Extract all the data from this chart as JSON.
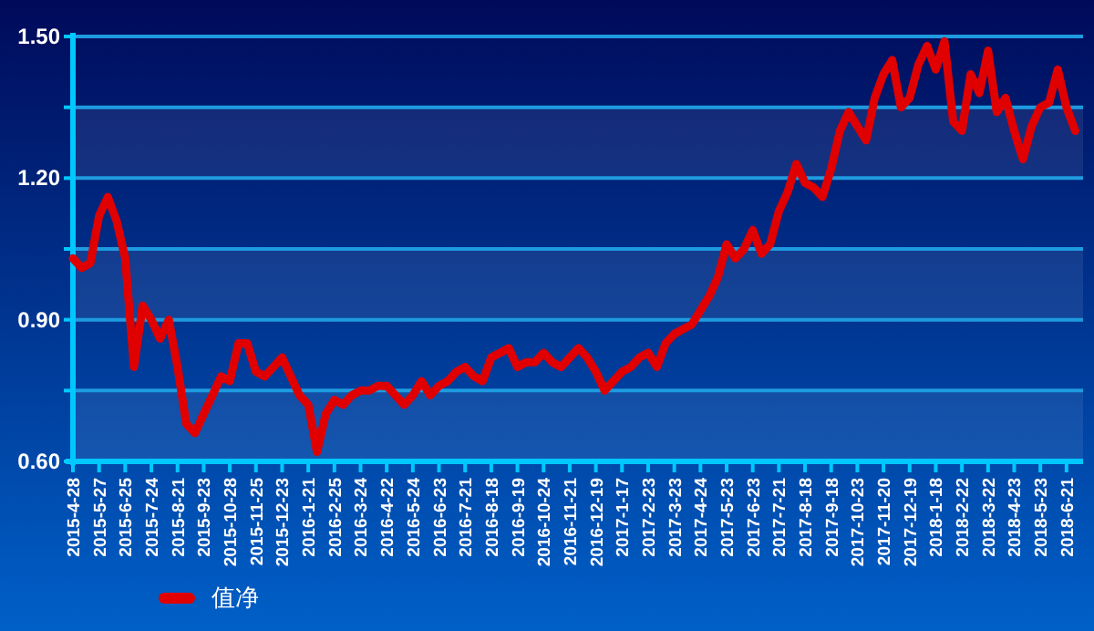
{
  "chart_data": {
    "type": "line",
    "categories": [
      "2015-4-28",
      null,
      null,
      "2015-5-27",
      null,
      null,
      "2015-6-25",
      null,
      null,
      "2015-7-24",
      null,
      null,
      "2015-8-21",
      null,
      null,
      "2015-9-23",
      null,
      null,
      "2015-10-28",
      null,
      null,
      "2015-11-25",
      null,
      null,
      "2015-12-23",
      null,
      null,
      "2016-1-21",
      null,
      null,
      "2016-2-25",
      null,
      null,
      "2016-3-24",
      null,
      null,
      "2016-4-22",
      null,
      null,
      "2016-5-24",
      null,
      null,
      "2016-6-23",
      null,
      null,
      "2016-7-21",
      null,
      null,
      "2016-8-18",
      null,
      null,
      "2016-9-19",
      null,
      null,
      "2016-10-24",
      null,
      null,
      "2016-11-21",
      null,
      null,
      "2016-12-19",
      null,
      null,
      "2017-1-17",
      null,
      null,
      "2017-2-23",
      null,
      null,
      "2017-3-23",
      null,
      null,
      "2017-4-24",
      null,
      null,
      "2017-5-23",
      null,
      null,
      "2017-6-23",
      null,
      null,
      "2017-7-21",
      null,
      null,
      "2017-8-18",
      null,
      null,
      "2017-9-18",
      null,
      null,
      "2017-10-23",
      null,
      null,
      "2017-11-20",
      null,
      null,
      "2017-12-19",
      null,
      null,
      "2018-1-18",
      null,
      null,
      "2018-2-22",
      null,
      null,
      "2018-3-22",
      null,
      null,
      "2018-4-23",
      null,
      null,
      "2018-5-23",
      null,
      null,
      "2018-6-21",
      null
    ],
    "series": [
      {
        "name": "值净",
        "color": "#e00000",
        "values": [
          1.03,
          1.01,
          1.02,
          1.12,
          1.16,
          1.11,
          1.03,
          0.8,
          0.93,
          0.9,
          0.86,
          0.9,
          0.8,
          0.68,
          0.66,
          0.7,
          0.74,
          0.78,
          0.77,
          0.85,
          0.85,
          0.79,
          0.78,
          0.8,
          0.82,
          0.78,
          0.74,
          0.72,
          0.62,
          0.7,
          0.73,
          0.72,
          0.74,
          0.75,
          0.75,
          0.76,
          0.76,
          0.74,
          0.72,
          0.74,
          0.77,
          0.74,
          0.76,
          0.77,
          0.79,
          0.8,
          0.78,
          0.77,
          0.82,
          0.83,
          0.84,
          0.8,
          0.81,
          0.81,
          0.83,
          0.81,
          0.8,
          0.82,
          0.84,
          0.82,
          0.79,
          0.75,
          0.77,
          0.79,
          0.8,
          0.82,
          0.83,
          0.8,
          0.85,
          0.87,
          0.88,
          0.89,
          0.92,
          0.95,
          0.99,
          1.06,
          1.03,
          1.05,
          1.09,
          1.04,
          1.06,
          1.13,
          1.17,
          1.23,
          1.19,
          1.18,
          1.16,
          1.22,
          1.3,
          1.34,
          1.31,
          1.28,
          1.37,
          1.42,
          1.45,
          1.35,
          1.37,
          1.44,
          1.48,
          1.43,
          1.49,
          1.32,
          1.3,
          1.42,
          1.38,
          1.47,
          1.34,
          1.37,
          1.3,
          1.24,
          1.31,
          1.35,
          1.36,
          1.43,
          1.35,
          1.3
        ]
      }
    ],
    "ylim": [
      0.6,
      1.5
    ],
    "yticks": [
      {
        "value": 0.6,
        "label": "0.60"
      },
      {
        "value": 0.75,
        "label": null
      },
      {
        "value": 0.9,
        "label": "0.90"
      },
      {
        "value": 1.05,
        "label": null
      },
      {
        "value": 1.2,
        "label": "1.20"
      },
      {
        "value": 1.35,
        "label": null
      },
      {
        "value": 1.5,
        "label": "1.50"
      }
    ],
    "grid": "y",
    "legend": "bottom left",
    "marker": "none",
    "line_style": "solid"
  }
}
